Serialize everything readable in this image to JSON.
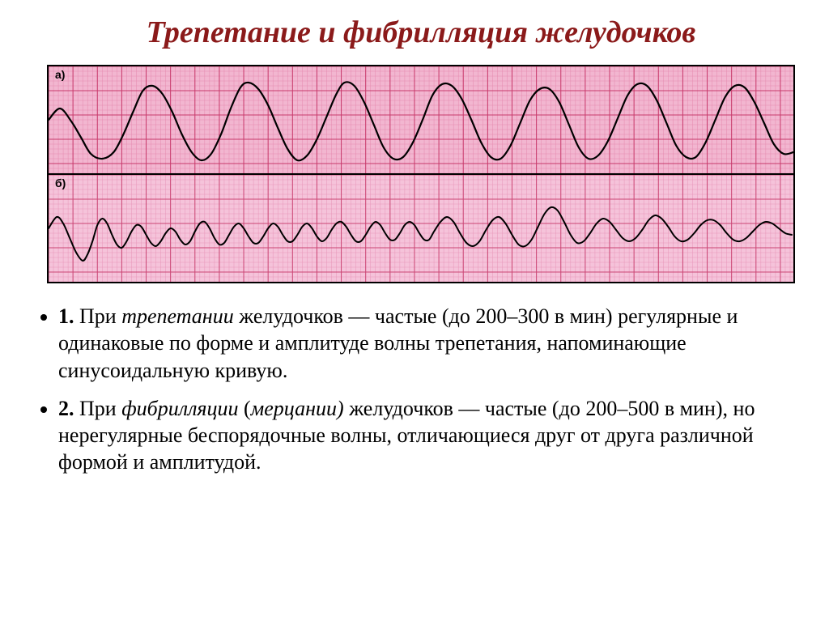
{
  "title": "Трепетание и фибрилляция желудочков",
  "strips": {
    "a": {
      "label": "а)",
      "grid": {
        "bg": "#f2b6d0",
        "minor_color": "#e58aaf",
        "major_color": "#c8396b",
        "minor_step": 6,
        "major_step": 30,
        "minor_width": 0.5,
        "major_width": 1
      },
      "trace": {
        "color": "#000000",
        "width": 2.2,
        "baseline": 76,
        "points": [
          [
            0,
            66
          ],
          [
            14,
            52
          ],
          [
            28,
            68
          ],
          [
            40,
            88
          ],
          [
            52,
            108
          ],
          [
            66,
            114
          ],
          [
            80,
            106
          ],
          [
            92,
            84
          ],
          [
            104,
            56
          ],
          [
            116,
            30
          ],
          [
            128,
            24
          ],
          [
            140,
            34
          ],
          [
            152,
            56
          ],
          [
            164,
            84
          ],
          [
            176,
            106
          ],
          [
            188,
            116
          ],
          [
            200,
            108
          ],
          [
            212,
            84
          ],
          [
            224,
            52
          ],
          [
            236,
            26
          ],
          [
            246,
            20
          ],
          [
            258,
            28
          ],
          [
            270,
            48
          ],
          [
            282,
            76
          ],
          [
            294,
            102
          ],
          [
            306,
            116
          ],
          [
            318,
            110
          ],
          [
            330,
            90
          ],
          [
            342,
            62
          ],
          [
            354,
            34
          ],
          [
            364,
            20
          ],
          [
            376,
            24
          ],
          [
            388,
            44
          ],
          [
            400,
            72
          ],
          [
            412,
            100
          ],
          [
            424,
            114
          ],
          [
            436,
            112
          ],
          [
            448,
            94
          ],
          [
            460,
            66
          ],
          [
            472,
            36
          ],
          [
            484,
            22
          ],
          [
            496,
            24
          ],
          [
            508,
            40
          ],
          [
            520,
            66
          ],
          [
            532,
            94
          ],
          [
            544,
            112
          ],
          [
            556,
            114
          ],
          [
            568,
            98
          ],
          [
            580,
            70
          ],
          [
            592,
            42
          ],
          [
            604,
            28
          ],
          [
            616,
            28
          ],
          [
            628,
            44
          ],
          [
            640,
            72
          ],
          [
            652,
            100
          ],
          [
            664,
            114
          ],
          [
            676,
            110
          ],
          [
            688,
            92
          ],
          [
            700,
            64
          ],
          [
            712,
            36
          ],
          [
            724,
            22
          ],
          [
            736,
            24
          ],
          [
            748,
            42
          ],
          [
            760,
            70
          ],
          [
            772,
            98
          ],
          [
            784,
            112
          ],
          [
            796,
            112
          ],
          [
            808,
            94
          ],
          [
            820,
            66
          ],
          [
            832,
            38
          ],
          [
            844,
            24
          ],
          [
            856,
            26
          ],
          [
            868,
            44
          ],
          [
            880,
            70
          ],
          [
            892,
            96
          ],
          [
            904,
            108
          ],
          [
            916,
            106
          ]
        ]
      }
    },
    "b": {
      "label": "б)",
      "grid": {
        "bg": "#f5c3da",
        "minor_color": "#e896b9",
        "major_color": "#cb4574",
        "minor_step": 6,
        "major_step": 30,
        "minor_width": 0.5,
        "major_width": 1
      },
      "trace": {
        "color": "#000000",
        "width": 2.0,
        "baseline": 68,
        "points": [
          [
            0,
            66
          ],
          [
            10,
            52
          ],
          [
            18,
            60
          ],
          [
            26,
            78
          ],
          [
            34,
            96
          ],
          [
            42,
            106
          ],
          [
            48,
            98
          ],
          [
            54,
            82
          ],
          [
            60,
            62
          ],
          [
            66,
            54
          ],
          [
            72,
            60
          ],
          [
            78,
            74
          ],
          [
            84,
            86
          ],
          [
            90,
            90
          ],
          [
            96,
            82
          ],
          [
            102,
            70
          ],
          [
            108,
            62
          ],
          [
            114,
            64
          ],
          [
            120,
            74
          ],
          [
            126,
            84
          ],
          [
            132,
            88
          ],
          [
            138,
            82
          ],
          [
            144,
            72
          ],
          [
            150,
            66
          ],
          [
            156,
            70
          ],
          [
            162,
            80
          ],
          [
            168,
            86
          ],
          [
            174,
            82
          ],
          [
            180,
            70
          ],
          [
            186,
            60
          ],
          [
            192,
            58
          ],
          [
            198,
            66
          ],
          [
            204,
            78
          ],
          [
            210,
            86
          ],
          [
            216,
            84
          ],
          [
            222,
            74
          ],
          [
            228,
            64
          ],
          [
            234,
            60
          ],
          [
            240,
            66
          ],
          [
            246,
            76
          ],
          [
            252,
            84
          ],
          [
            258,
            84
          ],
          [
            264,
            76
          ],
          [
            270,
            66
          ],
          [
            276,
            60
          ],
          [
            282,
            64
          ],
          [
            288,
            74
          ],
          [
            294,
            82
          ],
          [
            300,
            82
          ],
          [
            306,
            74
          ],
          [
            312,
            64
          ],
          [
            318,
            60
          ],
          [
            324,
            66
          ],
          [
            330,
            76
          ],
          [
            336,
            82
          ],
          [
            342,
            78
          ],
          [
            348,
            68
          ],
          [
            354,
            60
          ],
          [
            360,
            58
          ],
          [
            366,
            64
          ],
          [
            372,
            74
          ],
          [
            378,
            82
          ],
          [
            384,
            82
          ],
          [
            390,
            74
          ],
          [
            396,
            64
          ],
          [
            402,
            58
          ],
          [
            408,
            62
          ],
          [
            414,
            72
          ],
          [
            420,
            80
          ],
          [
            426,
            80
          ],
          [
            432,
            72
          ],
          [
            438,
            62
          ],
          [
            444,
            58
          ],
          [
            450,
            62
          ],
          [
            456,
            72
          ],
          [
            462,
            80
          ],
          [
            468,
            80
          ],
          [
            474,
            70
          ],
          [
            482,
            58
          ],
          [
            490,
            52
          ],
          [
            498,
            58
          ],
          [
            506,
            72
          ],
          [
            514,
            84
          ],
          [
            522,
            88
          ],
          [
            530,
            82
          ],
          [
            538,
            68
          ],
          [
            546,
            56
          ],
          [
            554,
            52
          ],
          [
            562,
            60
          ],
          [
            570,
            74
          ],
          [
            578,
            86
          ],
          [
            586,
            88
          ],
          [
            594,
            80
          ],
          [
            602,
            64
          ],
          [
            610,
            48
          ],
          [
            618,
            40
          ],
          [
            626,
            44
          ],
          [
            634,
            58
          ],
          [
            642,
            74
          ],
          [
            650,
            84
          ],
          [
            658,
            82
          ],
          [
            666,
            72
          ],
          [
            674,
            60
          ],
          [
            682,
            54
          ],
          [
            690,
            58
          ],
          [
            698,
            68
          ],
          [
            706,
            78
          ],
          [
            714,
            82
          ],
          [
            722,
            78
          ],
          [
            730,
            68
          ],
          [
            738,
            56
          ],
          [
            746,
            50
          ],
          [
            754,
            54
          ],
          [
            762,
            64
          ],
          [
            770,
            76
          ],
          [
            778,
            82
          ],
          [
            786,
            80
          ],
          [
            794,
            72
          ],
          [
            802,
            62
          ],
          [
            810,
            56
          ],
          [
            818,
            56
          ],
          [
            826,
            62
          ],
          [
            834,
            72
          ],
          [
            842,
            80
          ],
          [
            850,
            82
          ],
          [
            858,
            78
          ],
          [
            866,
            70
          ],
          [
            874,
            62
          ],
          [
            882,
            58
          ],
          [
            890,
            60
          ],
          [
            898,
            66
          ],
          [
            906,
            72
          ],
          [
            914,
            74
          ]
        ]
      }
    }
  },
  "notes": {
    "item1_num": "1.",
    "item1_a": " При ",
    "item1_it": "трепетании",
    "item1_b": " желудочков — частые (до 200–300 в мин) регулярные и одинаковые по форме и амплитуде волны трепетания, напоминающие синусоидальную кривую.",
    "item2_num": "2.",
    "item2_a": " При ",
    "item2_it1": "фибрилляции",
    "item2_b": " (",
    "item2_it2": "мерцании)",
    "item2_c": " желудочков — частые (до 200–500 в мин), но нерегулярные беспорядочные волны, отличающиеся друг от друга различной формой и амплитудой."
  }
}
